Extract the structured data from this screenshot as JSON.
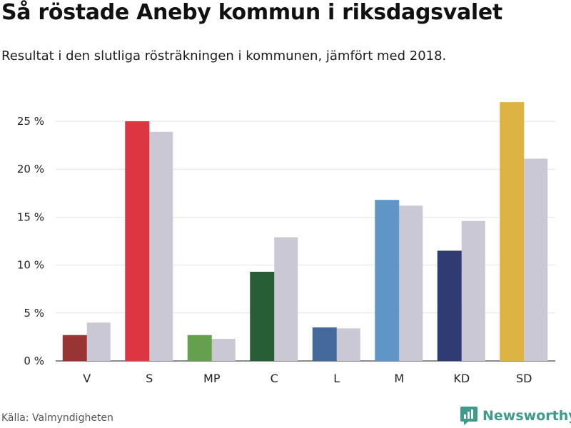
{
  "header": {
    "title": "Så röstade Aneby kommun i riksdagsvalet",
    "subtitle": "Resultat i den slutliga rösträkningen i kommunen, jämfört med 2018."
  },
  "footer": {
    "source": "Källa: Valmyndigheten",
    "brand": "Newsworthy",
    "brand_icon": "bar-chart-icon",
    "brand_color": "#3e9a8c"
  },
  "chart_data": {
    "type": "bar",
    "title": "",
    "xlabel": "",
    "ylabel": "",
    "categories": [
      "V",
      "S",
      "MP",
      "C",
      "L",
      "M",
      "KD",
      "SD"
    ],
    "colors": [
      "#993434",
      "#dc3640",
      "#64a04d",
      "#275e34",
      "#446a9a",
      "#6096c7",
      "#2f3c74",
      "#ddb444"
    ],
    "previous_color": "#c9c8d4",
    "series": [
      {
        "values": [
          2.7,
          25.0,
          2.7,
          9.3,
          3.5,
          16.8,
          11.5,
          27.0
        ]
      },
      {
        "values": [
          4.0,
          23.9,
          2.3,
          12.9,
          3.4,
          16.2,
          14.6,
          21.1
        ]
      }
    ],
    "ylim": [
      0,
      25
    ],
    "yticks": [
      0,
      5,
      10,
      15,
      20,
      25
    ],
    "ytick_labels": [
      "0 %",
      "5 %",
      "10 %",
      "15 %",
      "20 %",
      "25 %"
    ],
    "grid": true,
    "legend": "none"
  }
}
